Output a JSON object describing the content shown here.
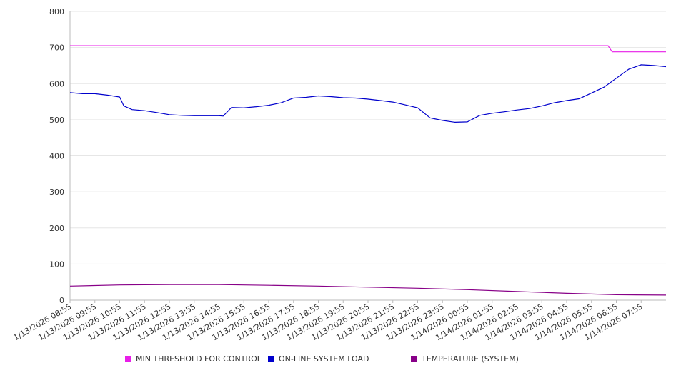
{
  "chart_data": {
    "type": "line",
    "title": "",
    "xlabel": "",
    "ylabel": "",
    "ylim": [
      0,
      800
    ],
    "yticks": [
      "0",
      "100",
      "200",
      "300",
      "400",
      "500",
      "600",
      "700",
      "800"
    ],
    "grid": true,
    "legend_position": "bottom",
    "x_tick_labels": [
      "1/13/2026 08:55",
      "1/13/2026 09:55",
      "1/13/2026 10:55",
      "1/13/2026 11:55",
      "1/13/2026 12:55",
      "1/13/2026 13:55",
      "1/13/2026 14:55",
      "1/13/2026 15:55",
      "1/13/2026 16:55",
      "1/13/2026 17:55",
      "1/13/2026 18:55",
      "1/13/2026 19:55",
      "1/13/2026 20:55",
      "1/13/2026 21:55",
      "1/13/2026 22:55",
      "1/13/2026 23:55",
      "1/14/2026 00:55",
      "1/14/2026 01:55",
      "1/14/2026 02:55",
      "1/14/2026 03:55",
      "1/14/2026 04:55",
      "1/14/2026 05:55",
      "1/14/2026 06:55",
      "1/14/2026 07:55"
    ],
    "series": [
      {
        "name": "MIN THRESHOLD FOR CONTROL",
        "color": "#e81ee8",
        "x": [
          "1/13/2026 08:55",
          "1/14/2026 06:35",
          "1/14/2026 06:45",
          "1/14/2026 08:55"
        ],
        "values": [
          705,
          705,
          688,
          688
        ]
      },
      {
        "name": "ON-LINE SYSTEM LOAD",
        "color": "#0000cc",
        "x": [
          "1/13/2026 08:55",
          "1/13/2026 09:25",
          "1/13/2026 09:55",
          "1/13/2026 10:25",
          "1/13/2026 10:55",
          "1/13/2026 11:05",
          "1/13/2026 11:25",
          "1/13/2026 11:55",
          "1/13/2026 12:25",
          "1/13/2026 12:55",
          "1/13/2026 13:25",
          "1/13/2026 13:55",
          "1/13/2026 14:25",
          "1/13/2026 14:55",
          "1/13/2026 15:05",
          "1/13/2026 15:25",
          "1/13/2026 15:55",
          "1/13/2026 16:25",
          "1/13/2026 16:55",
          "1/13/2026 17:25",
          "1/13/2026 17:55",
          "1/13/2026 18:25",
          "1/13/2026 18:55",
          "1/13/2026 19:25",
          "1/13/2026 19:55",
          "1/13/2026 20:25",
          "1/13/2026 20:55",
          "1/13/2026 21:25",
          "1/13/2026 21:55",
          "1/13/2026 22:25",
          "1/13/2026 22:55",
          "1/13/2026 23:25",
          "1/13/2026 23:55",
          "1/14/2026 00:25",
          "1/14/2026 00:55",
          "1/14/2026 01:25",
          "1/14/2026 01:55",
          "1/14/2026 02:25",
          "1/14/2026 02:55",
          "1/14/2026 03:25",
          "1/14/2026 03:55",
          "1/14/2026 04:25",
          "1/14/2026 04:55",
          "1/14/2026 05:25",
          "1/14/2026 05:55",
          "1/14/2026 06:25",
          "1/14/2026 06:55",
          "1/14/2026 07:25",
          "1/14/2026 07:55",
          "1/14/2026 08:25",
          "1/14/2026 08:55"
        ],
        "values": [
          575,
          572,
          572,
          568,
          563,
          538,
          528,
          525,
          520,
          514,
          512,
          511,
          511,
          511,
          510,
          534,
          533,
          536,
          540,
          547,
          560,
          562,
          566,
          564,
          561,
          560,
          557,
          553,
          549,
          541,
          533,
          505,
          498,
          493,
          494,
          512,
          518,
          522,
          527,
          531,
          538,
          547,
          553,
          558,
          574,
          590,
          615,
          640,
          652,
          650,
          647
        ]
      },
      {
        "name": "TEMPERATURE (SYSTEM)",
        "color": "#880088",
        "x": [
          "1/13/2026 08:55",
          "1/13/2026 10:55",
          "1/13/2026 12:55",
          "1/13/2026 14:55",
          "1/13/2026 16:55",
          "1/13/2026 18:55",
          "1/13/2026 20:55",
          "1/13/2026 22:55",
          "1/14/2026 00:55",
          "1/14/2026 02:55",
          "1/14/2026 04:55",
          "1/14/2026 06:55",
          "1/14/2026 08:55"
        ],
        "values": [
          39,
          42,
          43,
          43,
          41,
          39,
          36,
          33,
          29,
          24,
          19,
          15,
          14
        ]
      }
    ]
  }
}
